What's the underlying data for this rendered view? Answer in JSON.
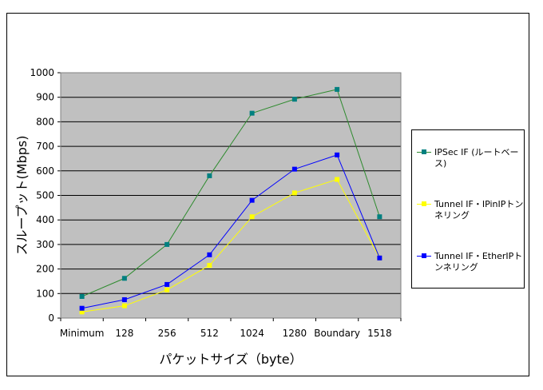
{
  "chart_data": {
    "type": "line",
    "title": "",
    "xlabel": "パケットサイズ（byte）",
    "ylabel": "スループット(Mbps)",
    "categories": [
      "Minimum",
      "128",
      "256",
      "512",
      "1024",
      "1280",
      "Boundary",
      "1518"
    ],
    "ylim": [
      0,
      1000
    ],
    "yticks": [
      0,
      100,
      200,
      300,
      400,
      500,
      600,
      700,
      800,
      900,
      1000
    ],
    "grid": true,
    "legend_position": "right",
    "plot_background": "#c0c0c0",
    "series": [
      {
        "name": "IPSec IF (ルートベース)",
        "color": "#008080",
        "line_color": "#2e8b2e",
        "values": [
          88,
          162,
          300,
          580,
          835,
          892,
          932,
          413
        ]
      },
      {
        "name": "Tunnel IF・IPinIPトンネリング",
        "color": "#ffff00",
        "line_color": "#ffff00",
        "values": [
          25,
          50,
          115,
          215,
          413,
          510,
          565,
          245
        ]
      },
      {
        "name": "Tunnel IF・EtherIPトンネリング",
        "color": "#0000ff",
        "line_color": "#0000ff",
        "values": [
          40,
          75,
          137,
          258,
          480,
          607,
          665,
          245
        ]
      }
    ]
  }
}
